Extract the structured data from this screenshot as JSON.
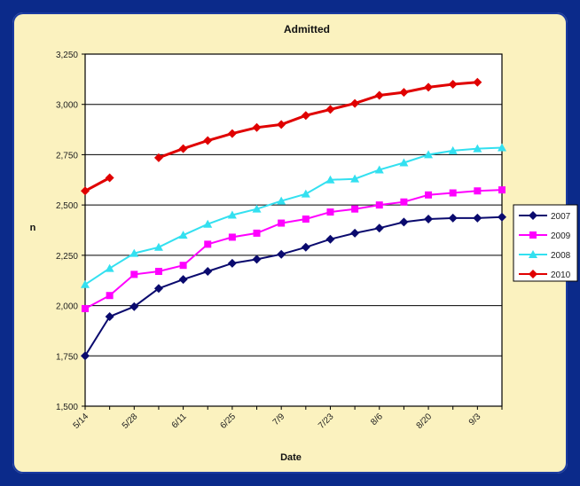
{
  "chart_data": {
    "type": "line",
    "title": "Admitted",
    "xlabel": "Date",
    "ylabel": "n",
    "ylim": [
      1500,
      3250
    ],
    "yticks": [
      "1,500",
      "1,750",
      "2,000",
      "2,250",
      "2,500",
      "2,750",
      "3,000",
      "3,250"
    ],
    "ytick_values": [
      1500,
      1750,
      2000,
      2250,
      2500,
      2750,
      3000,
      3250
    ],
    "xticks": [
      "5/14",
      "5/28",
      "6/11",
      "6/25",
      "7/9",
      "7/23",
      "8/6",
      "8/20",
      "9/3"
    ],
    "x": [
      "5/14",
      "5/21",
      "5/28",
      "6/4",
      "6/11",
      "6/18",
      "6/25",
      "7/2",
      "7/9",
      "7/16",
      "7/23",
      "7/30",
      "8/6",
      "8/13",
      "8/20",
      "8/27",
      "9/3",
      "9/10"
    ],
    "grid": "horizontal",
    "legend_position": "right",
    "series": [
      {
        "name": "2007",
        "color": "#0a0a6e",
        "marker": "diamond",
        "values": [
          1750,
          1945,
          1995,
          2085,
          2130,
          2170,
          2210,
          2230,
          2255,
          2290,
          2330,
          2360,
          2385,
          2415,
          2430,
          2435,
          2435,
          2440
        ]
      },
      {
        "name": "2009",
        "color": "#ff00ff",
        "marker": "square",
        "values": [
          1985,
          2050,
          2155,
          2170,
          2200,
          2305,
          2340,
          2360,
          2410,
          2430,
          2465,
          2480,
          2500,
          2515,
          2550,
          2560,
          2570,
          2575
        ]
      },
      {
        "name": "2008",
        "color": "#33e0f0",
        "marker": "triangle",
        "values": [
          2105,
          2185,
          2260,
          2290,
          2350,
          2405,
          2450,
          2480,
          2520,
          2555,
          2625,
          2630,
          2675,
          2710,
          2750,
          2770,
          2780,
          2785
        ]
      },
      {
        "name": "2010",
        "color": "#e00000",
        "marker": "diamond",
        "values": [
          2570,
          2635,
          null,
          2735,
          2780,
          2820,
          2855,
          2885,
          2900,
          2945,
          2975,
          3005,
          3045,
          3060,
          3085,
          3100,
          3110,
          null
        ]
      }
    ]
  }
}
